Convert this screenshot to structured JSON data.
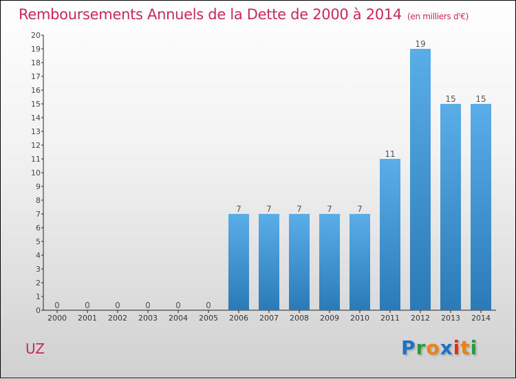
{
  "title": "Remboursements Annuels de la Dette de 2000 à 2014",
  "unit": "(en milliers d'€)",
  "place": "UZ",
  "logo": {
    "letters": [
      "P",
      "r",
      "o",
      "x",
      "i",
      "t",
      "i"
    ],
    "colors": [
      "#1a73c8",
      "#2a9a3a",
      "#f08010",
      "#1a73c8",
      "#e03020",
      "#f08010",
      "#2a9a3a"
    ]
  },
  "colors": {
    "bar_top": "#5aaee8",
    "bar_bottom": "#2a7ab8",
    "title": "#c8285a"
  },
  "chart_data": {
    "type": "bar",
    "title": "Remboursements Annuels de la Dette de 2000 à 2014",
    "categories": [
      "2000",
      "2001",
      "2002",
      "2003",
      "2004",
      "2005",
      "2006",
      "2007",
      "2008",
      "2009",
      "2010",
      "2011",
      "2012",
      "2013",
      "2014"
    ],
    "values": [
      0,
      0,
      0,
      0,
      0,
      0,
      7,
      7,
      7,
      7,
      7,
      11,
      19,
      15,
      15
    ],
    "ylim": [
      0,
      20
    ],
    "yticks": [
      0,
      1,
      2,
      3,
      4,
      5,
      6,
      7,
      8,
      9,
      10,
      11,
      12,
      13,
      14,
      15,
      16,
      17,
      18,
      19,
      20
    ],
    "xlabel": "",
    "ylabel": "",
    "grid": false
  }
}
